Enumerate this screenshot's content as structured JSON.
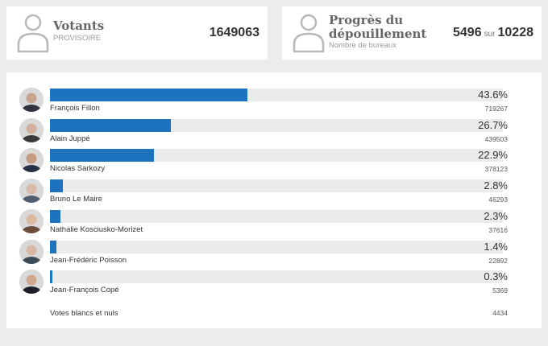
{
  "votants": {
    "title": "Votants",
    "subtitle": "PROVISOIRE",
    "count": "1649063"
  },
  "progress": {
    "title_line1": "Progrès du",
    "title_line2": "dépouillement",
    "subtitle": "Nombre de bureaux",
    "counted": "5496",
    "sur": "sur",
    "total": "10228"
  },
  "candidates": [
    {
      "name": "François Fillon",
      "percent": "43.6%",
      "votes": "719267",
      "share": 0.436,
      "skin": "#c8a58f",
      "suit": "#2f3340"
    },
    {
      "name": "Alain Juppé",
      "percent": "26.7%",
      "votes": "439503",
      "share": 0.267,
      "skin": "#d3b29d",
      "suit": "#3a3a3a"
    },
    {
      "name": "Nicolas Sarkozy",
      "percent": "22.9%",
      "votes": "378123",
      "share": 0.229,
      "skin": "#c49a80",
      "suit": "#263044"
    },
    {
      "name": "Bruno Le Maire",
      "percent": "2.8%",
      "votes": "46293",
      "share": 0.028,
      "skin": "#d8bba8",
      "suit": "#506070"
    },
    {
      "name": "Nathalie Kosciusko-Morizet",
      "percent": "2.3%",
      "votes": "37616",
      "share": 0.023,
      "skin": "#dcb9a0",
      "suit": "#6b4b3a"
    },
    {
      "name": "Jean-Frédéric Poisson",
      "percent": "1.4%",
      "votes": "22892",
      "share": 0.014,
      "skin": "#d8b8a4",
      "suit": "#3c4a5a"
    },
    {
      "name": "Jean-François Copé",
      "percent": "0.3%",
      "votes": "5369",
      "share": 0.003,
      "skin": "#cfa98f",
      "suit": "#1f1f28"
    }
  ],
  "blank": {
    "label": "Votes blancs et nuls",
    "votes": "4434"
  },
  "colors": {
    "bar": "#1e73be",
    "track": "#ebebeb",
    "icon": "#b8b8b8"
  },
  "icons": {
    "voters": "person-icon",
    "progress": "person-icon"
  }
}
